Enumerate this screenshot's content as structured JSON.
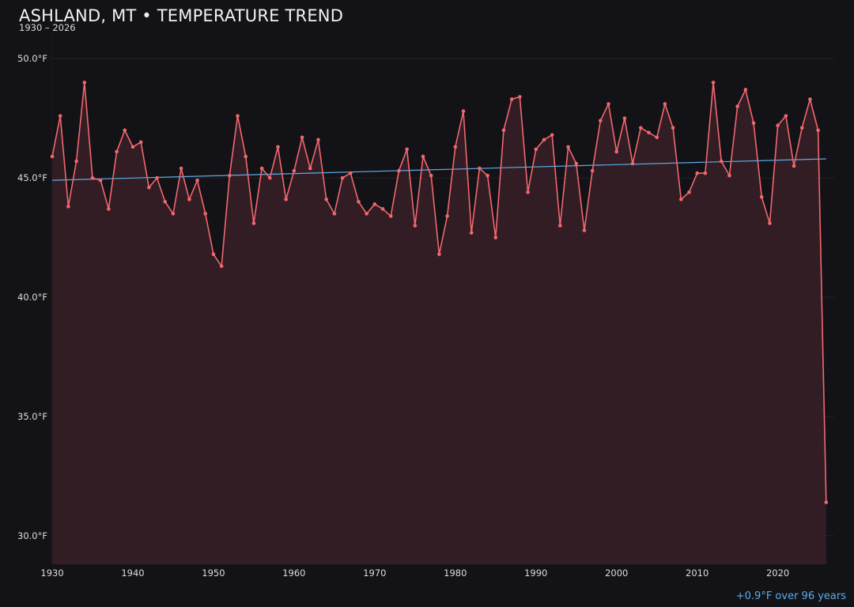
{
  "header": {
    "title": "ASHLAND, MT • TEMPERATURE TREND",
    "subtitle": "1930 – 2026"
  },
  "footer": {
    "trend_note": "+0.9°F over 96 years"
  },
  "colors": {
    "background": "#131217",
    "series_line": "#f0686d",
    "area_fill": "#351f26",
    "trend_line": "#5aaee8",
    "trend_text": "#5aaee8",
    "grid": "#2a2024"
  },
  "chart_data": {
    "type": "line",
    "title": "ASHLAND, MT • TEMPERATURE TREND",
    "subtitle": "1930 – 2026",
    "xlabel": "",
    "ylabel": "",
    "xlim": [
      1930,
      2026
    ],
    "ylim": [
      28.8,
      51.2
    ],
    "grid": true,
    "area_fill": true,
    "x_ticks": [
      1930,
      1940,
      1950,
      1960,
      1970,
      1980,
      1990,
      2000,
      2010,
      2020
    ],
    "y_ticks": [
      30,
      35,
      40,
      45,
      50
    ],
    "y_tick_labels": [
      "30.0°F",
      "35.0°F",
      "40.0°F",
      "45.0°F",
      "50.0°F"
    ],
    "x": [
      1930,
      1931,
      1932,
      1933,
      1934,
      1935,
      1936,
      1937,
      1938,
      1939,
      1940,
      1941,
      1942,
      1943,
      1944,
      1945,
      1946,
      1947,
      1948,
      1949,
      1950,
      1951,
      1952,
      1953,
      1954,
      1955,
      1956,
      1957,
      1958,
      1959,
      1960,
      1961,
      1962,
      1963,
      1964,
      1965,
      1966,
      1967,
      1968,
      1969,
      1970,
      1971,
      1972,
      1973,
      1974,
      1975,
      1976,
      1977,
      1978,
      1979,
      1980,
      1981,
      1982,
      1983,
      1984,
      1985,
      1986,
      1987,
      1988,
      1989,
      1990,
      1991,
      1992,
      1993,
      1994,
      1995,
      1996,
      1997,
      1998,
      1999,
      2000,
      2001,
      2002,
      2003,
      2004,
      2005,
      2006,
      2007,
      2008,
      2009,
      2010,
      2011,
      2012,
      2013,
      2014,
      2015,
      2016,
      2017,
      2018,
      2019,
      2020,
      2021,
      2022,
      2023,
      2024,
      2025,
      2026
    ],
    "values": [
      45.9,
      47.6,
      43.8,
      45.7,
      49.0,
      45.0,
      44.9,
      43.7,
      46.1,
      47.0,
      46.3,
      46.5,
      44.6,
      45.0,
      44.0,
      43.5,
      45.4,
      44.1,
      44.9,
      43.5,
      41.8,
      41.3,
      45.1,
      47.6,
      45.9,
      43.1,
      45.4,
      45.0,
      46.3,
      44.1,
      45.3,
      46.7,
      45.4,
      46.6,
      44.1,
      43.5,
      45.0,
      45.2,
      44.0,
      43.5,
      43.9,
      43.7,
      43.4,
      45.3,
      46.2,
      43.0,
      45.9,
      45.1,
      41.8,
      43.4,
      46.3,
      47.8,
      42.7,
      45.4,
      45.1,
      42.5,
      47.0,
      48.3,
      48.4,
      44.4,
      46.2,
      46.6,
      46.8,
      43.0,
      46.3,
      45.6,
      42.8,
      45.3,
      47.4,
      48.1,
      46.1,
      47.5,
      45.6,
      47.1,
      46.9,
      46.7,
      48.1,
      47.1,
      44.1,
      44.4,
      45.2,
      45.2,
      49.0,
      45.7,
      45.1,
      48.0,
      48.7,
      47.3,
      44.2,
      43.1,
      47.2,
      47.6,
      45.5,
      47.1,
      48.3,
      47.0,
      31.4
    ],
    "trend": {
      "label": "+0.9°F over 96 years",
      "start": [
        1930,
        44.9
      ],
      "end": [
        2026,
        45.8
      ]
    }
  }
}
